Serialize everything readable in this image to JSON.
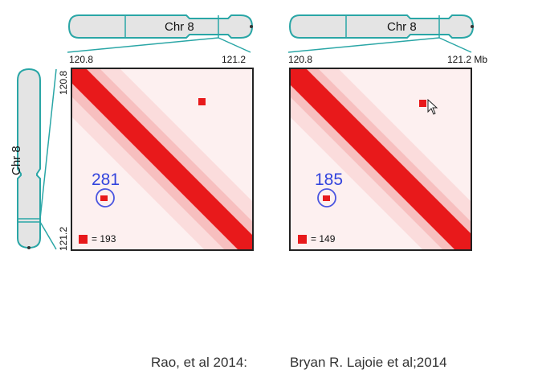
{
  "colors": {
    "chromosome_outline": "#2aa6a6",
    "chromosome_fill": "#e4e4e4",
    "contact_high": "#e8191b",
    "loop_circle": "#4a55e0"
  },
  "panels": [
    {
      "chromosome_label": "Chr 8",
      "x_tick_start": "120.8",
      "x_tick_end": "121.2",
      "y_tick_start": "120.8",
      "y_tick_end": "121.2",
      "vertical_chromosome_label": "Chr 8",
      "loop_count": "281",
      "legend_text": "= 193"
    },
    {
      "chromosome_label": "Chr 8",
      "x_tick_start": "120.8",
      "x_tick_end": "121.2 Mb",
      "loop_count": "185",
      "legend_text": "= 149"
    }
  ],
  "citation": {
    "left": "Rao, et al 2014:",
    "right": "Bryan R. Lajoie et al;2014"
  }
}
